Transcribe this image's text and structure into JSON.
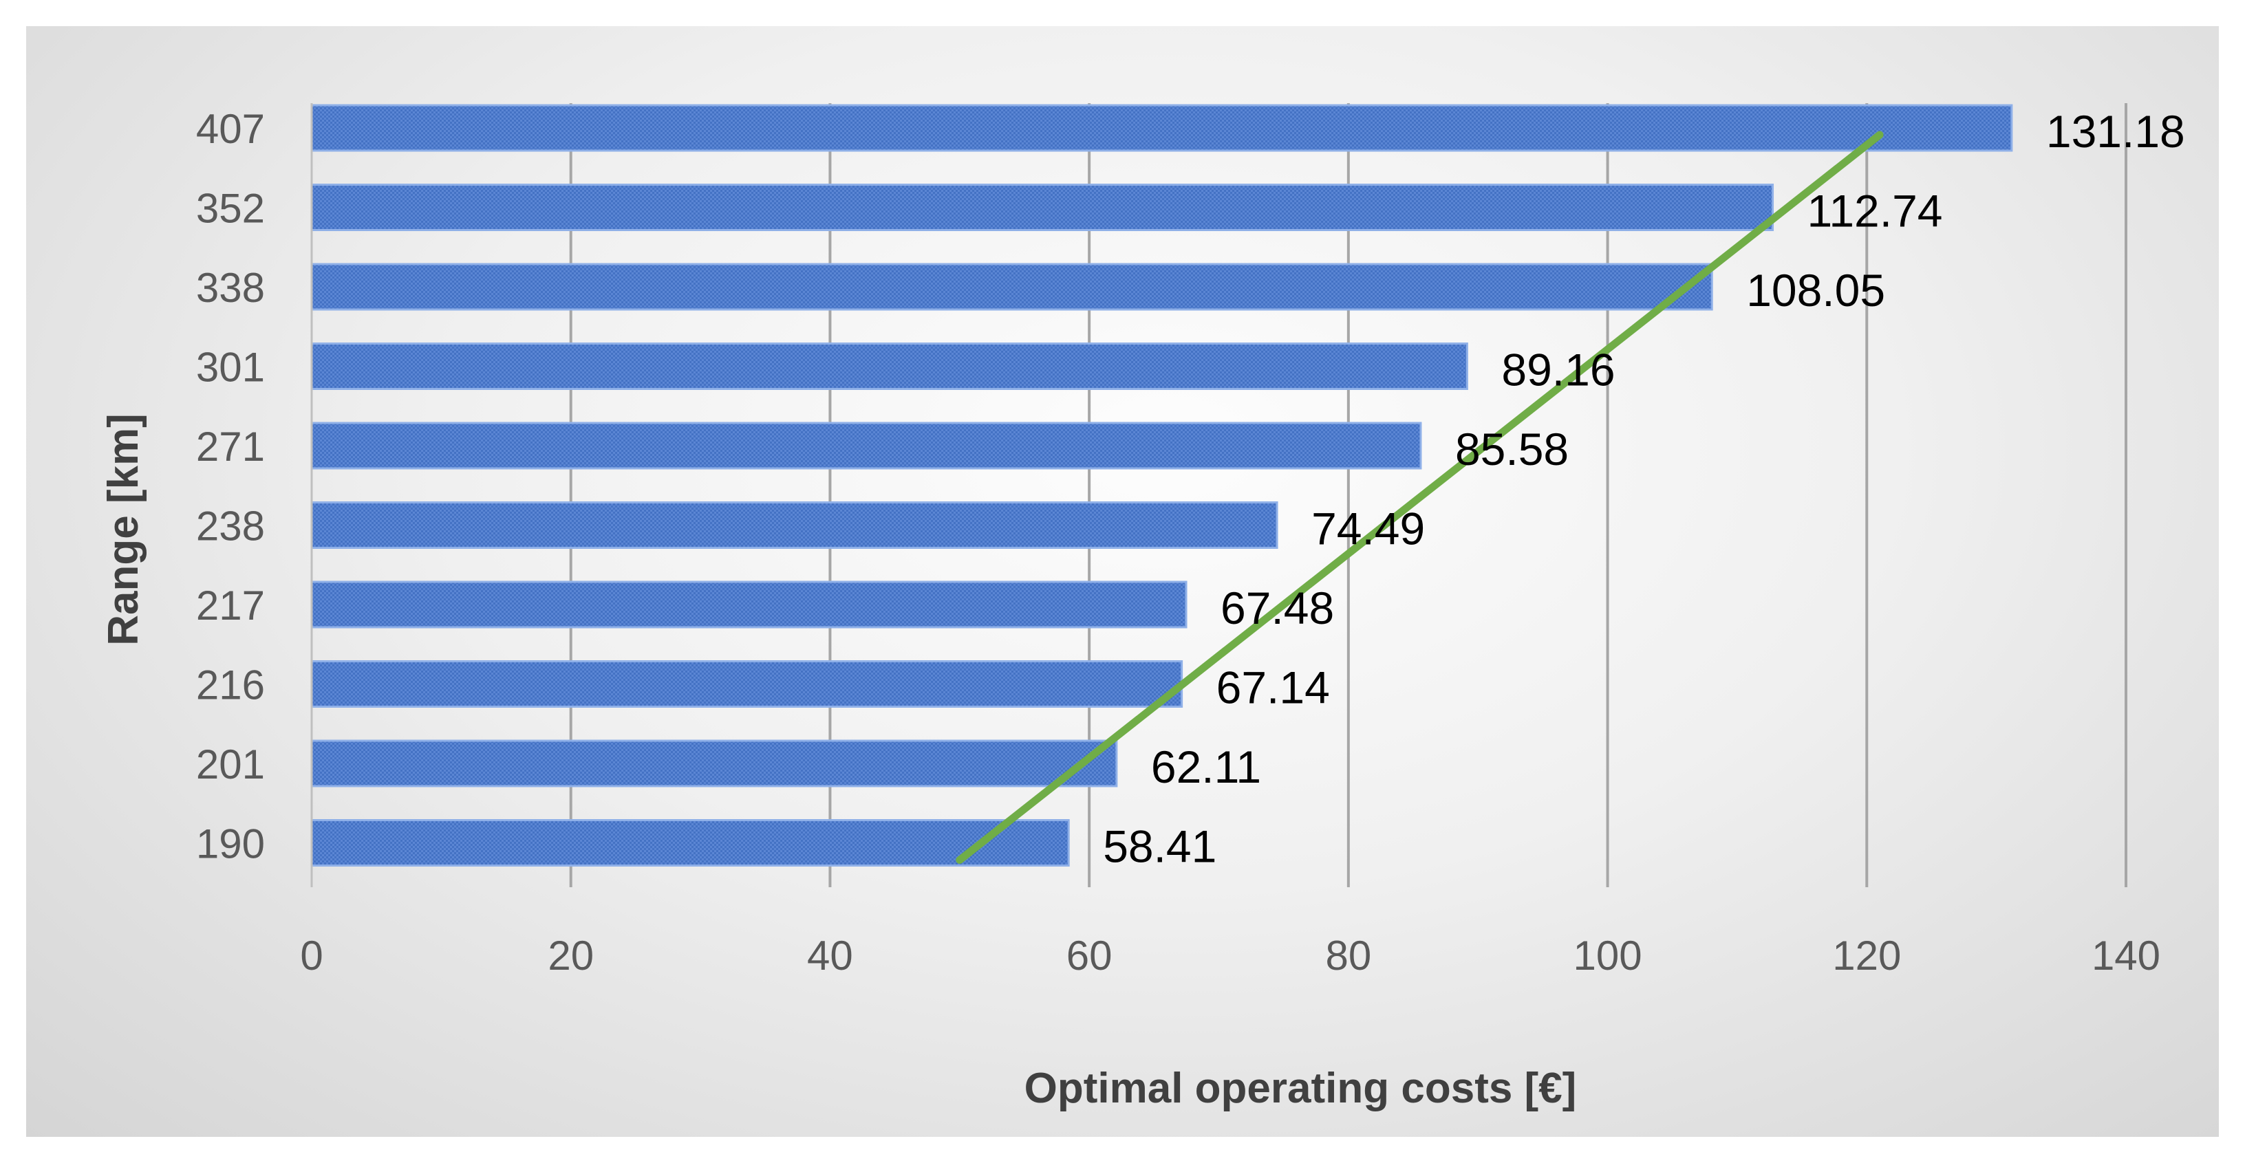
{
  "chart_data": {
    "type": "bar",
    "orientation": "horizontal",
    "xlabel": "Optimal operating costs [€]",
    "ylabel": "Range [km]",
    "categories": [
      "190",
      "201",
      "216",
      "217",
      "238",
      "271",
      "301",
      "338",
      "352",
      "407"
    ],
    "values": [
      58.41,
      62.11,
      67.14,
      67.48,
      74.49,
      85.58,
      89.16,
      108.05,
      112.74,
      131.18
    ],
    "data_labels": [
      "58.41",
      "62.11",
      "67.14",
      "67.48",
      "74.49",
      "85.58",
      "89.16",
      "108.05",
      "112.74",
      "131.18"
    ],
    "xlim": [
      0,
      140
    ],
    "xticks": [
      0,
      20,
      40,
      60,
      80,
      100,
      120,
      140
    ],
    "grid": "vertical",
    "legend": "none",
    "trendline": {
      "type": "linear",
      "color": "#70ad47",
      "start": [
        50,
        "190"
      ],
      "end": [
        121,
        "407"
      ]
    },
    "colors": {
      "bar": "#4472c4",
      "bar_edge": "#8fb0e8",
      "trendline": "#70ad47",
      "gridline": "#a6a6a6"
    }
  }
}
